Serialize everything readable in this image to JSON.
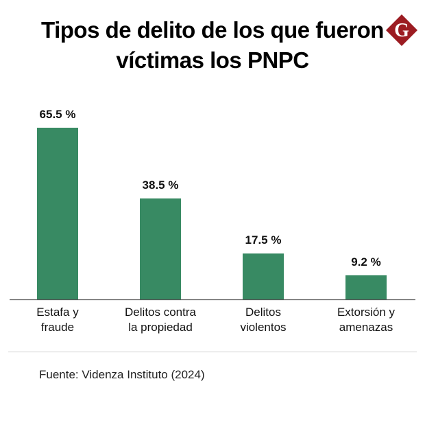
{
  "header": {
    "title_line1": "Tipos de delito de los que fueron",
    "title_line2": "víctimas los PNPC",
    "logo_letter": "G",
    "logo_color": "#9c1c22"
  },
  "chart_data": {
    "type": "bar",
    "title": "Tipos de delito de los que fueron víctimas los PNPC",
    "categories": [
      [
        "Estafa y",
        "fraude"
      ],
      [
        "Delitos contra",
        "la propiedad"
      ],
      [
        "Delitos",
        "violentos"
      ],
      [
        "Extorsión y",
        "amenazas"
      ]
    ],
    "values": [
      65.5,
      38.5,
      17.5,
      9.2
    ],
    "value_labels": [
      "65.5 %",
      "38.5 %",
      "17.5 %",
      "9.2 %"
    ],
    "unit": "%",
    "ylim": [
      0,
      65.5
    ],
    "grid": false,
    "bar_color": "#388a63",
    "axis_color": "#555555"
  },
  "footer": {
    "source": "Fuente: Videnza Instituto (2024)"
  }
}
